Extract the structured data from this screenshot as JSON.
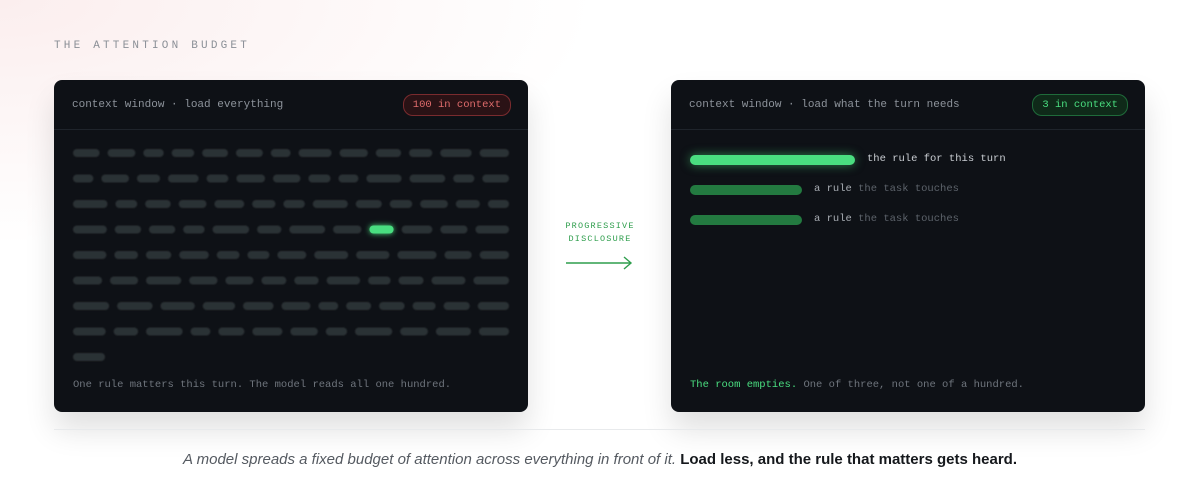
{
  "eyebrow": "THE ATTENTION BUDGET",
  "left_panel": {
    "title": "context window · load everything",
    "badge": "100 in context",
    "footer": "One rule matters this turn. The model reads all one hundred."
  },
  "transition": {
    "line1": "PROGRESSIVE",
    "line2": "DISCLOSURE"
  },
  "right_panel": {
    "title": "context window · load what the turn needs",
    "badge": "3 in context",
    "rows": [
      {
        "label": "the rule for this turn"
      },
      {
        "strong": "a rule",
        "rest": "the task touches"
      },
      {
        "strong": "a rule",
        "rest": "the task touches"
      }
    ],
    "footer": {
      "lead": "The room empties.",
      "rest": "One of three, not one of a hundred."
    }
  },
  "caption": {
    "italic": "A model spreads a fixed budget of attention across everything in front of it.",
    "bold": "Load less, and the rule that matters gets heard."
  }
}
